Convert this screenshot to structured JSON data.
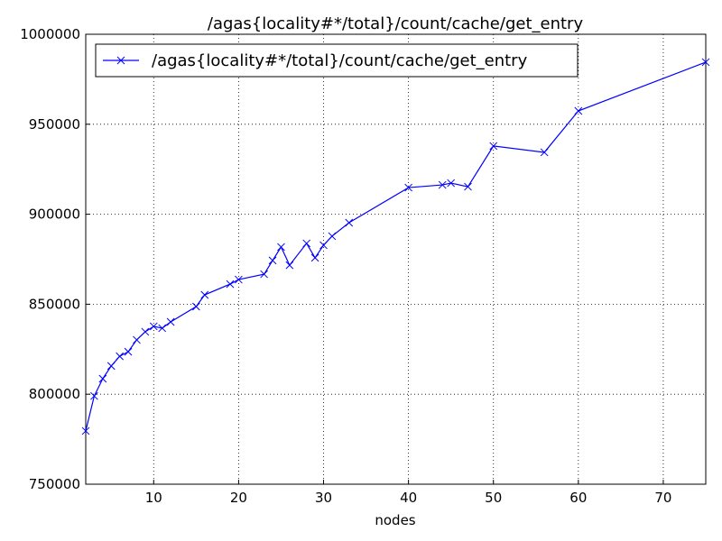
{
  "chart_data": {
    "type": "line",
    "title": "/agas{locality#*/total}/count/cache/get_entry",
    "x_label": "nodes",
    "x": [
      2,
      3,
      4,
      5,
      6,
      7,
      8,
      9,
      10,
      11,
      12,
      15,
      16,
      19,
      20,
      23,
      24,
      25,
      26,
      28,
      29,
      30,
      31,
      33,
      40,
      44,
      45,
      47,
      50,
      56,
      60,
      75
    ],
    "series": [
      {
        "name": "/agas{locality#*/total}/count/cache/get_entry",
        "color": "#0000ff",
        "values": [
          779600,
          799000,
          808600,
          815700,
          821100,
          823600,
          830200,
          834700,
          837700,
          836700,
          840200,
          848700,
          855200,
          861200,
          863700,
          866700,
          874300,
          881800,
          871700,
          883800,
          875800,
          882800,
          887800,
          895300,
          914800,
          916300,
          917300,
          915300,
          937900,
          934400,
          957400,
          984500
        ]
      }
    ],
    "xlim": [
      2,
      75
    ],
    "xticks": [
      10,
      20,
      30,
      40,
      50,
      60,
      70
    ],
    "ylim": [
      750000,
      1000000
    ],
    "yticks": [
      750000,
      800000,
      850000,
      900000,
      950000,
      1000000
    ],
    "grid": true,
    "legend": "upper-left"
  }
}
